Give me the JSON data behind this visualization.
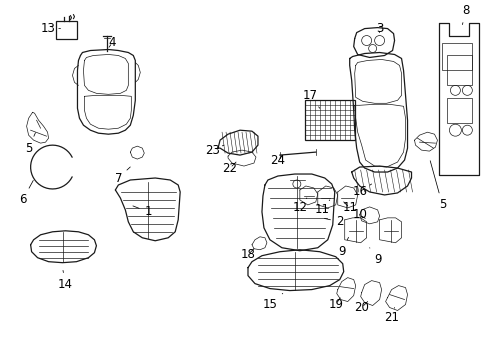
{
  "bg_color": "#ffffff",
  "line_color": "#1a1a1a",
  "text_color": "#000000",
  "figsize": [
    4.89,
    3.6
  ],
  "dpi": 100,
  "font_size": 8.5,
  "label_font_size": 8.5
}
